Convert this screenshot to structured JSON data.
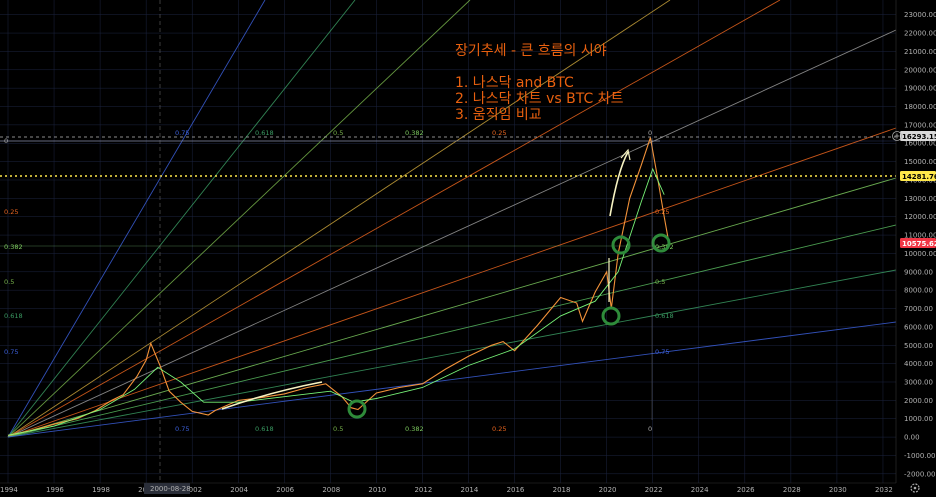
{
  "colors": {
    "background": "#000000",
    "grid": "#1c2440",
    "price_line": "#ff9a3c",
    "moving_average": "#7dff7d",
    "annotation_text": "#e8600f",
    "dotted_level": "#ffe84a",
    "current_price_bg": "#f23645",
    "circle": "#2e8b3a",
    "trend_arrow": "#f7f3c2"
  },
  "annotation": {
    "title": "장기추세 - 큰 흐름의 시야",
    "items": [
      "1. 나스닥 and BTC",
      "2. 나스닥 차트 vs BTC 차트",
      "3. 움직임 비교"
    ]
  },
  "price_tags": {
    "top": "16293.15",
    "dotted": "14281.76",
    "current": "10575.62"
  },
  "crosshair_date": "2000-08-28",
  "fib_labels": {
    "top_row": [
      "0.75",
      "0.618",
      "0.5",
      "0.382",
      "0.25",
      "0"
    ],
    "bottom_row": [
      "0.75",
      "0.618",
      "0.5",
      "0.382",
      "0.25",
      "0"
    ],
    "left_column": [
      "0",
      "0.25",
      "0.382",
      "0.5",
      "0.618",
      "0.75"
    ],
    "right_column": [
      "0.25",
      "0.382",
      "0.5",
      "0.618",
      "0.75"
    ]
  },
  "chart_data": {
    "type": "line",
    "title": "",
    "xlabel": "",
    "ylabel": "",
    "xlim": [
      1994,
      2033
    ],
    "ylim": [
      -2500,
      23800
    ],
    "x_ticks": [
      "1994",
      "1996",
      "1998",
      "2000",
      "2002",
      "2004",
      "2006",
      "2008",
      "2010",
      "2012",
      "2014",
      "2016",
      "2018",
      "2020",
      "2022",
      "2024",
      "2026",
      "2028",
      "2030",
      "2032"
    ],
    "y_ticks": [
      "23000.00",
      "22000.00",
      "21000.00",
      "20000.00",
      "19000.00",
      "18000.00",
      "17000.00",
      "16000.00",
      "15000.00",
      "14000.00",
      "13000.00",
      "12000.00",
      "11000.00",
      "10000.00",
      "9000.00",
      "8000.00",
      "7000.00",
      "6000.00",
      "5000.00",
      "4000.00",
      "3000.00",
      "2000.00",
      "1000.00",
      "0.00",
      "-1000.00",
      "-2000.00"
    ],
    "series": [
      {
        "x": [
          1994.0,
          1995.0,
          1996.0,
          1997.0,
          1997.8,
          1998.5,
          1999.0,
          1999.6,
          2000.0,
          2000.2,
          2000.6,
          2001.0,
          2001.5,
          2002.0,
          2002.7,
          2003.0,
          2004.0,
          2005.0,
          2006.0,
          2007.0,
          2007.8,
          2008.5,
          2008.9,
          2009.2,
          2010.0,
          2011.0,
          2012.0,
          2013.0,
          2014.0,
          2015.0,
          2015.5,
          2016.0,
          2016.5,
          2017.0,
          2018.0,
          2018.7,
          2018.95,
          2019.5,
          2020.0,
          2020.2,
          2020.5,
          2021.0,
          2021.5,
          2021.9,
          2022.2,
          2022.5,
          2022.7
        ],
        "y": [
          100,
          350,
          700,
          1000,
          1450,
          2000,
          2300,
          3300,
          4200,
          5100,
          3900,
          2500,
          1900,
          1400,
          1200,
          1450,
          2000,
          2150,
          2350,
          2700,
          2900,
          2200,
          1600,
          1500,
          2400,
          2700,
          2900,
          3700,
          4400,
          5000,
          5200,
          4700,
          5400,
          6100,
          7600,
          7300,
          6300,
          7900,
          9000,
          7000,
          10000,
          13000,
          14800,
          16300,
          14200,
          12000,
          10600
        ]
      },
      {
        "x": [
          1994.0,
          1996.0,
          1998.0,
          1999.5,
          2000.5,
          2001.5,
          2002.5,
          2004.0,
          2006.0,
          2008.0,
          2009.0,
          2010.0,
          2012.0,
          2014.0,
          2016.0,
          2018.0,
          2019.5,
          2020.5,
          2021.5,
          2022.0,
          2022.5
        ],
        "y": [
          100,
          600,
          1500,
          2600,
          3800,
          3000,
          1900,
          1900,
          2200,
          2500,
          1900,
          2100,
          2700,
          3900,
          4800,
          6600,
          7400,
          9000,
          12800,
          14600,
          13200
        ]
      }
    ]
  }
}
